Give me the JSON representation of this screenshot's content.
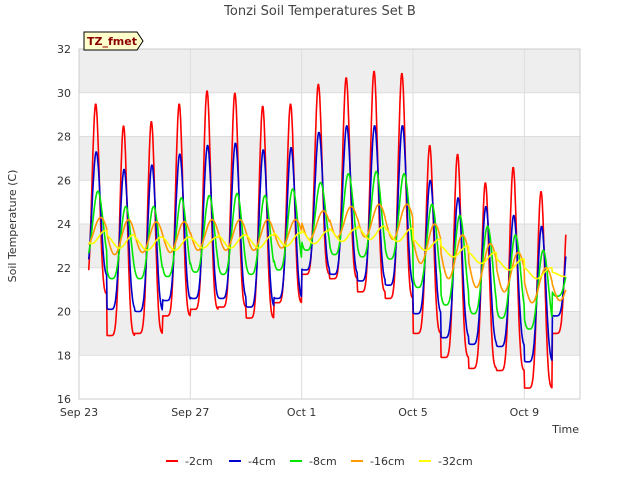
{
  "chart_data": {
    "type": "line",
    "title": "Tonzi Soil Temperatures Set B",
    "xlabel": "Time",
    "ylabel": "Soil Temperature (C)",
    "annotation": "TZ_fmet",
    "x_range_days": [
      0,
      18
    ],
    "ylim": [
      16,
      32
    ],
    "y_ticks": [
      16,
      18,
      20,
      22,
      24,
      26,
      28,
      30,
      32
    ],
    "x_ticks": [
      {
        "label": "Sep 23",
        "day": 0
      },
      {
        "label": "Sep 27",
        "day": 4
      },
      {
        "label": "Oct 1",
        "day": 8
      },
      {
        "label": "Oct 5",
        "day": 12
      },
      {
        "label": "Oct 9",
        "day": 16
      }
    ],
    "grid": true,
    "legend_position": "bottom",
    "series": [
      {
        "name": "-2cm",
        "color": "#ff0000",
        "daily_max": [
          29.5,
          28.5,
          28.7,
          29.5,
          30.1,
          30.0,
          29.4,
          29.5,
          30.4,
          30.7,
          31.0,
          30.9,
          27.6,
          27.2,
          25.9,
          26.6,
          25.5,
          25.5
        ],
        "daily_min": [
          20.8,
          18.9,
          19.0,
          19.8,
          20.1,
          20.2,
          19.7,
          20.4,
          21.7,
          21.5,
          20.9,
          20.6,
          19.0,
          17.9,
          17.4,
          17.3,
          16.5,
          19.0
        ]
      },
      {
        "name": "-4cm",
        "color": "#0000cc",
        "daily_max": [
          27.3,
          26.5,
          26.7,
          27.2,
          27.6,
          27.7,
          27.4,
          27.5,
          28.2,
          28.5,
          28.5,
          28.5,
          26.0,
          25.2,
          24.8,
          24.4,
          23.9,
          23.9
        ],
        "daily_min": [
          21.6,
          20.1,
          20.0,
          20.5,
          20.6,
          20.6,
          20.2,
          20.6,
          21.9,
          21.7,
          21.4,
          21.2,
          19.9,
          18.8,
          18.5,
          18.4,
          17.7,
          19.8
        ]
      },
      {
        "name": "-8cm",
        "color": "#00e600",
        "daily_max": [
          25.5,
          24.8,
          24.8,
          25.2,
          25.3,
          25.4,
          25.3,
          25.6,
          25.9,
          26.3,
          26.4,
          26.3,
          24.9,
          24.4,
          23.9,
          23.5,
          22.8,
          22.3
        ],
        "daily_min": [
          22.3,
          21.5,
          21.5,
          21.6,
          21.8,
          21.7,
          21.7,
          21.9,
          22.8,
          22.6,
          22.5,
          22.4,
          21.1,
          20.3,
          19.9,
          19.7,
          19.2,
          20.7
        ]
      },
      {
        "name": "-16cm",
        "color": "#ff9900",
        "daily_max": [
          24.3,
          24.2,
          24.1,
          24.1,
          24.2,
          24.2,
          24.2,
          24.2,
          24.6,
          24.8,
          24.9,
          24.9,
          24.0,
          23.5,
          23.1,
          22.7,
          22.0,
          21.8
        ],
        "daily_min": [
          23.0,
          22.6,
          22.7,
          22.7,
          22.8,
          22.8,
          22.8,
          22.9,
          23.3,
          23.4,
          23.4,
          23.3,
          22.2,
          21.5,
          21.1,
          20.9,
          20.4,
          20.5
        ]
      },
      {
        "name": "-32cm",
        "color": "#ffff00",
        "daily_max": [
          23.7,
          23.5,
          23.4,
          23.4,
          23.4,
          23.5,
          23.5,
          23.6,
          23.7,
          23.8,
          23.9,
          23.8,
          23.3,
          23.0,
          22.7,
          22.4,
          22.0,
          21.8
        ],
        "daily_min": [
          23.1,
          22.9,
          22.8,
          22.8,
          22.9,
          22.9,
          22.9,
          23.0,
          23.1,
          23.2,
          23.3,
          23.2,
          22.8,
          22.5,
          22.2,
          21.9,
          21.5,
          21.6
        ]
      }
    ]
  }
}
